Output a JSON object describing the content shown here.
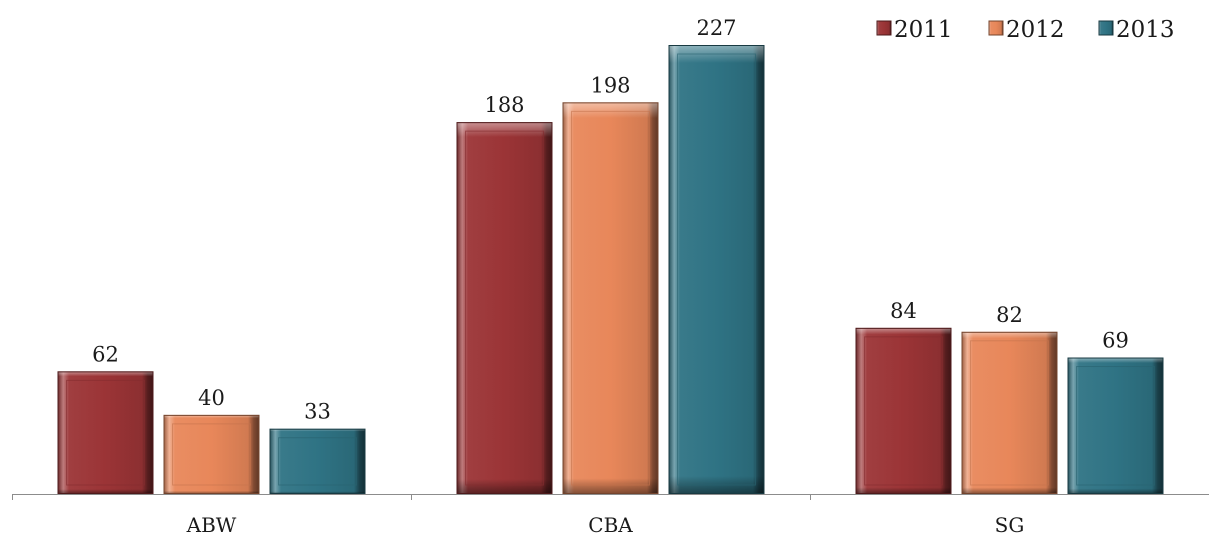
{
  "chart_data": {
    "type": "bar",
    "categories": [
      "ABW",
      "CBA",
      "SG"
    ],
    "series": [
      {
        "name": "2011",
        "values": [
          62,
          188,
          84
        ],
        "color": "#9b3436"
      },
      {
        "name": "2012",
        "values": [
          40,
          198,
          82
        ],
        "color": "#e8875a"
      },
      {
        "name": "2013",
        "values": [
          33,
          227,
          69
        ],
        "color": "#2f7384"
      }
    ],
    "title": "",
    "xlabel": "",
    "ylabel": "",
    "ylim": [
      0,
      227
    ],
    "grid": false,
    "legend": "top-right",
    "data_labels": true
  }
}
